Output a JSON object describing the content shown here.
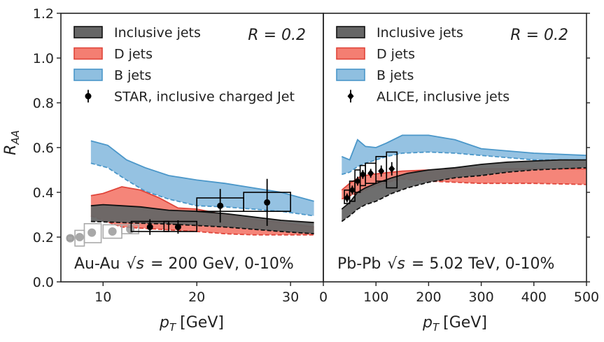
{
  "chart_data": [
    {
      "type": "band",
      "panel": "left",
      "title": "",
      "system_label": "Au-Au",
      "energy_label": "= 200 GeV, 0-10%",
      "sqrt_s_symbol": "√s",
      "radius_label": "R = 0.2",
      "xlabel_symbol": "p",
      "xlabel_sub": "T",
      "xlabel_unit": "[GeV]",
      "ylabel_symbol": "R",
      "ylabel_sub": "AA",
      "xlim": [
        5.5,
        33.5
      ],
      "ylim": [
        0.0,
        1.2
      ],
      "xticks": [
        10,
        20,
        30
      ],
      "yticks": [
        0.0,
        0.2,
        0.4,
        0.6,
        0.8,
        1.0,
        1.2
      ],
      "ytick_labels": [
        "0.0",
        "0.2",
        "0.4",
        "0.6",
        "0.8",
        "1.0",
        "1.2"
      ],
      "legend": [
        "Inclusive jets",
        "D jets",
        "B jets",
        "STAR, inclusive charged Jet"
      ],
      "series": [
        {
          "name": "B jets",
          "color": "#8fbfe0",
          "edge": "#4b97c9",
          "x": [
            8.7,
            10.5,
            12.5,
            14.5,
            17,
            20,
            23,
            26,
            29,
            32.5
          ],
          "upper": [
            0.63,
            0.61,
            0.545,
            0.51,
            0.475,
            0.455,
            0.44,
            0.42,
            0.4,
            0.36
          ],
          "lower": [
            0.53,
            0.51,
            0.455,
            0.405,
            0.37,
            0.34,
            0.335,
            0.325,
            0.315,
            0.295
          ]
        },
        {
          "name": "D jets",
          "color": "#f47e72",
          "edge": "#e0453a",
          "x": [
            8.7,
            10,
            12,
            14,
            16,
            18,
            20,
            23,
            26,
            29,
            32.5
          ],
          "upper": [
            0.385,
            0.395,
            0.425,
            0.41,
            0.375,
            0.33,
            0.325,
            0.3,
            0.28,
            0.265,
            0.245
          ],
          "lower": [
            0.295,
            0.275,
            0.245,
            0.24,
            0.235,
            0.23,
            0.225,
            0.215,
            0.21,
            0.21,
            0.21
          ]
        },
        {
          "name": "Inclusive jets",
          "color": "#666666",
          "edge": "#111111",
          "x": [
            8.7,
            10,
            12,
            14,
            17,
            20,
            23,
            26,
            29,
            32.5
          ],
          "upper": [
            0.34,
            0.345,
            0.34,
            0.335,
            0.32,
            0.315,
            0.305,
            0.29,
            0.275,
            0.265
          ],
          "lower": [
            0.27,
            0.268,
            0.265,
            0.262,
            0.258,
            0.252,
            0.245,
            0.235,
            0.225,
            0.215
          ]
        }
      ],
      "points": [
        {
          "x": 15,
          "y": 0.245,
          "yerr": 0.035,
          "box_x": [
            13,
            17
          ],
          "box_y": [
            0.225,
            0.27
          ]
        },
        {
          "x": 18,
          "y": 0.245,
          "yerr": 0.03,
          "box_x": [
            16.5,
            20
          ],
          "box_y": [
            0.225,
            0.27
          ]
        },
        {
          "x": 22.5,
          "y": 0.34,
          "yerr": 0.075,
          "box_x": [
            20,
            25
          ],
          "box_y": [
            0.315,
            0.375
          ]
        },
        {
          "x": 27.5,
          "y": 0.355,
          "yerr": 0.105,
          "box_x": [
            25,
            30
          ],
          "box_y": [
            0.315,
            0.4
          ]
        }
      ],
      "grey_points": [
        {
          "x": 6.5,
          "y": 0.195,
          "box_x": [
            6.2,
            6.8
          ],
          "box_y": [
            0.185,
            0.205
          ]
        },
        {
          "x": 7.5,
          "y": 0.2,
          "box_x": [
            7.0,
            8.0
          ],
          "box_y": [
            0.16,
            0.23
          ]
        },
        {
          "x": 8.8,
          "y": 0.22,
          "box_x": [
            8.0,
            9.8
          ],
          "box_y": [
            0.175,
            0.26
          ]
        },
        {
          "x": 11,
          "y": 0.225,
          "box_x": [
            10.0,
            12.0
          ],
          "box_y": [
            0.195,
            0.255
          ]
        },
        {
          "x": 12.9,
          "y": 0.235,
          "box_x": [
            12.0,
            13.8
          ],
          "box_y": [
            0.215,
            0.255
          ]
        }
      ]
    },
    {
      "type": "band",
      "panel": "right",
      "system_label": "Pb-Pb",
      "energy_label": "= 5.02 TeV, 0-10%",
      "sqrt_s_symbol": "√s",
      "radius_label": "R = 0.2",
      "xlabel_symbol": "p",
      "xlabel_sub": "T",
      "xlabel_unit": "[GeV]",
      "xlim": [
        0,
        500
      ],
      "ylim": [
        0.0,
        1.2
      ],
      "xticks": [
        0,
        100,
        200,
        300,
        400,
        500
      ],
      "legend": [
        "Inclusive jets",
        "D jets",
        "B jets",
        "ALICE, inclusive jets"
      ],
      "series": [
        {
          "name": "B jets",
          "color": "#8fbfe0",
          "edge": "#4b97c9",
          "x": [
            35,
            50,
            65,
            80,
            100,
            120,
            150,
            200,
            250,
            300,
            400,
            500
          ],
          "upper": [
            0.56,
            0.545,
            0.635,
            0.605,
            0.6,
            0.62,
            0.655,
            0.655,
            0.635,
            0.595,
            0.575,
            0.565
          ],
          "lower": [
            0.48,
            0.49,
            0.515,
            0.53,
            0.545,
            0.56,
            0.575,
            0.58,
            0.575,
            0.565,
            0.545,
            0.545
          ]
        },
        {
          "name": "D jets",
          "color": "#f47e72",
          "edge": "#e0453a",
          "x": [
            35,
            50,
            70,
            90,
            110,
            130,
            150,
            200,
            250,
            300,
            400,
            500
          ],
          "upper": [
            0.41,
            0.44,
            0.47,
            0.48,
            0.485,
            0.49,
            0.495,
            0.5,
            0.505,
            0.505,
            0.505,
            0.505
          ],
          "lower": [
            0.37,
            0.385,
            0.4,
            0.42,
            0.435,
            0.45,
            0.46,
            0.45,
            0.445,
            0.44,
            0.44,
            0.435
          ]
        },
        {
          "name": "Inclusive jets",
          "color": "#666666",
          "edge": "#111111",
          "x": [
            35,
            50,
            65,
            80,
            100,
            130,
            160,
            200,
            250,
            300,
            350,
            400,
            450,
            500
          ],
          "upper": [
            0.325,
            0.355,
            0.4,
            0.42,
            0.44,
            0.465,
            0.485,
            0.5,
            0.51,
            0.525,
            0.535,
            0.54,
            0.545,
            0.545
          ],
          "lower": [
            0.27,
            0.295,
            0.325,
            0.345,
            0.36,
            0.395,
            0.42,
            0.445,
            0.465,
            0.475,
            0.49,
            0.5,
            0.505,
            0.51
          ]
        }
      ],
      "points": [
        {
          "x": 45,
          "y": 0.375,
          "yerr": 0.02,
          "box_x": [
            40,
            50
          ],
          "box_y": [
            0.35,
            0.41
          ]
        },
        {
          "x": 55,
          "y": 0.41,
          "yerr": 0.02,
          "box_x": [
            50,
            60
          ],
          "box_y": [
            0.36,
            0.45
          ]
        },
        {
          "x": 65,
          "y": 0.45,
          "yerr": 0.02,
          "box_x": [
            60,
            70
          ],
          "box_y": [
            0.4,
            0.5
          ]
        },
        {
          "x": 75,
          "y": 0.48,
          "yerr": 0.02,
          "box_x": [
            70,
            80
          ],
          "box_y": [
            0.43,
            0.52
          ]
        },
        {
          "x": 90,
          "y": 0.485,
          "yerr": 0.02,
          "box_x": [
            80,
            100
          ],
          "box_y": [
            0.44,
            0.53
          ]
        },
        {
          "x": 110,
          "y": 0.495,
          "yerr": 0.025,
          "box_x": [
            100,
            120
          ],
          "box_y": [
            0.45,
            0.56
          ]
        },
        {
          "x": 130,
          "y": 0.505,
          "yerr": 0.03,
          "box_x": [
            120,
            140
          ],
          "box_y": [
            0.42,
            0.58
          ]
        }
      ]
    }
  ]
}
